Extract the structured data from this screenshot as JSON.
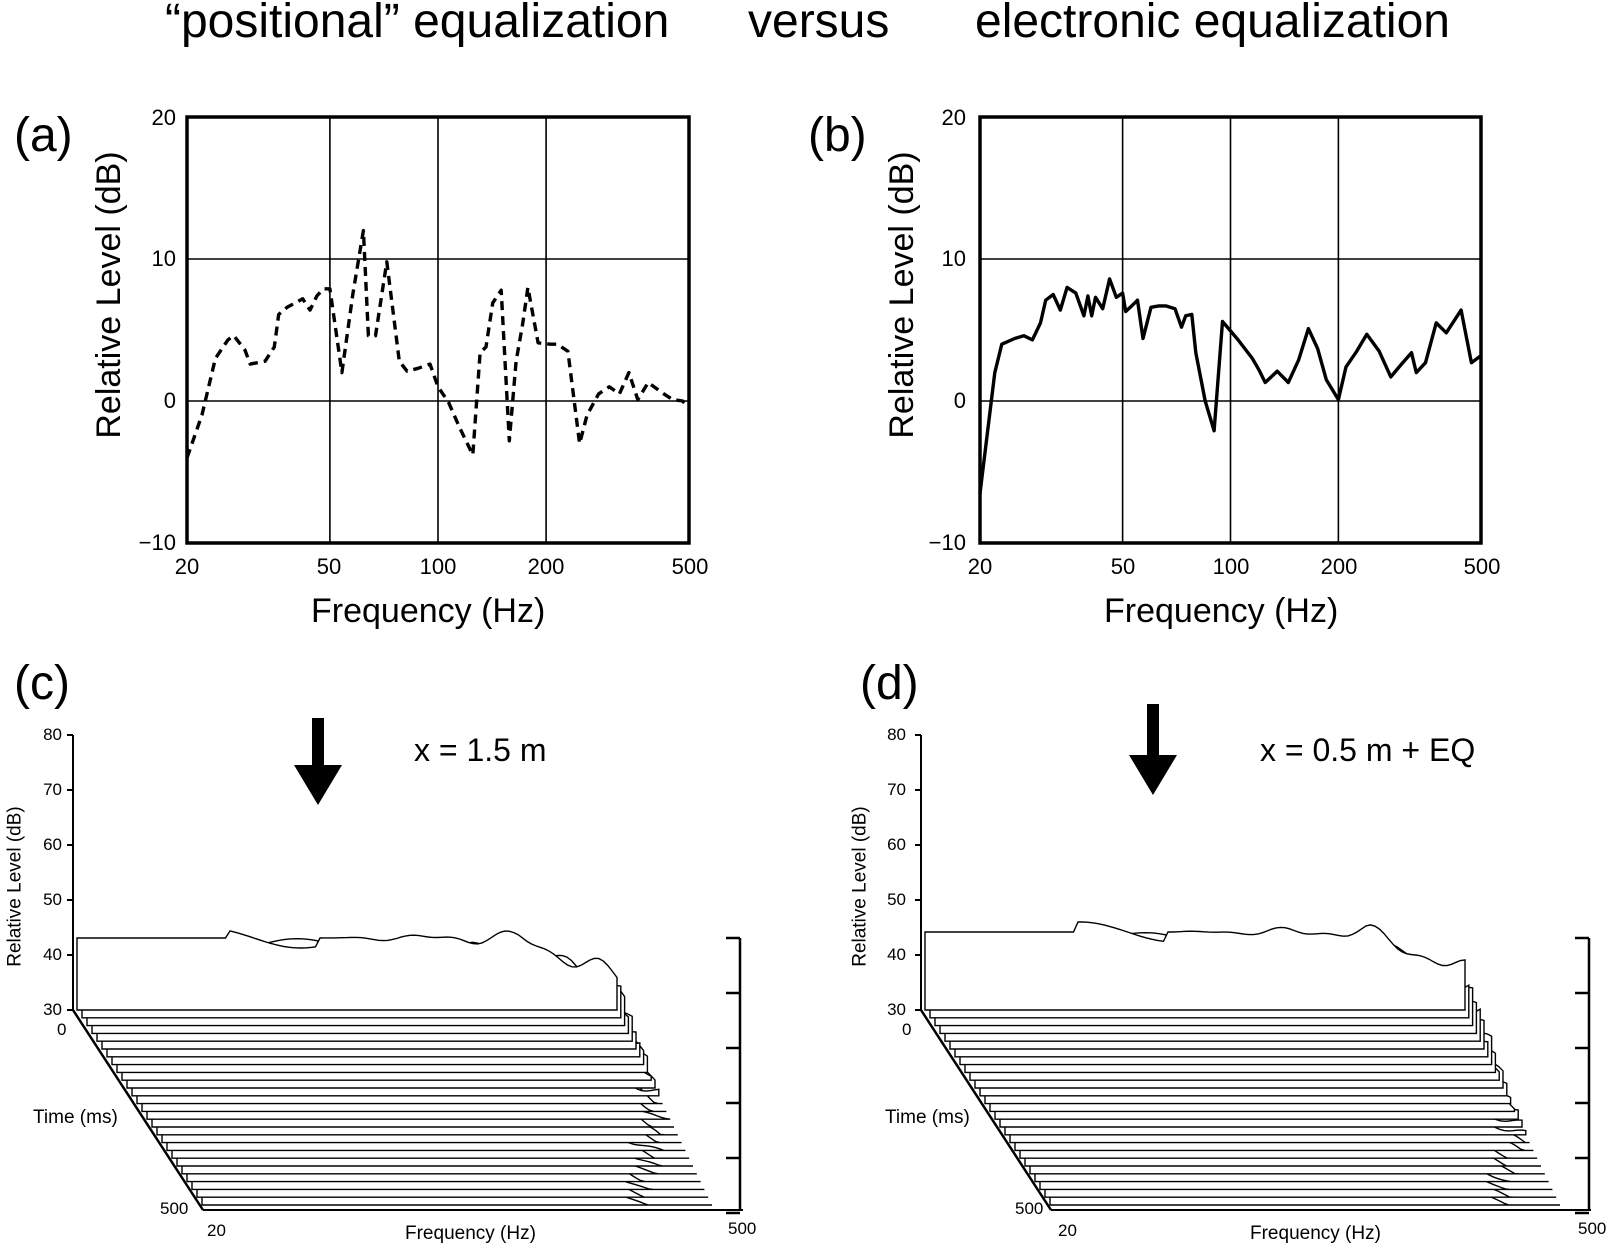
{
  "header": {
    "left": "“positional” equalization",
    "middle": "versus",
    "right": "electronic equalization"
  },
  "chart_data": [
    {
      "id": "a",
      "panel_label": "(a)",
      "type": "line",
      "line_style": "dashed",
      "xscale": "log",
      "xlim": [
        20,
        500
      ],
      "ylim": [
        -10,
        20
      ],
      "x_ticks": [
        "20",
        "50",
        "100",
        "200",
        "500"
      ],
      "y_ticks": [
        "20",
        "10",
        "0",
        "−10"
      ],
      "grid": true,
      "xlabel": "Frequency (Hz)",
      "ylabel": "Relative Level (dB)",
      "series": [
        {
          "x": [
            20,
            22,
            24,
            26,
            27,
            29,
            30,
            33,
            35,
            36,
            38,
            40,
            42,
            44,
            46,
            48,
            50,
            54,
            58,
            62,
            64,
            67,
            72,
            78,
            82,
            88,
            95,
            100,
            107,
            115,
            125,
            131,
            136,
            142,
            150,
            158,
            165,
            172,
            178,
            190,
            205,
            215,
            230,
            248,
            260,
            280,
            300,
            320,
            340,
            360,
            385,
            420,
            450,
            480,
            500
          ],
          "y": [
            -4,
            -1,
            3,
            4.3,
            4.6,
            3.6,
            2.6,
            2.8,
            3.8,
            6.1,
            6.6,
            6.9,
            7.2,
            6.4,
            7.4,
            7.9,
            7.9,
            2,
            7.6,
            12,
            4.6,
            4.6,
            9.8,
            2.8,
            2.1,
            2.3,
            2.6,
            1,
            -0.1,
            -1.9,
            -3.8,
            3.4,
            3.8,
            6.9,
            7.8,
            -2.8,
            2.8,
            5.4,
            8,
            4.1,
            4,
            4,
            3.5,
            -3,
            -1,
            0.5,
            1,
            0.5,
            2,
            0.1,
            1.3,
            0.6,
            0.1,
            0,
            -0.5
          ]
        }
      ]
    },
    {
      "id": "b",
      "panel_label": "(b)",
      "type": "line",
      "line_style": "solid",
      "xscale": "log",
      "xlim": [
        20,
        500
      ],
      "ylim": [
        -10,
        20
      ],
      "x_ticks": [
        "20",
        "50",
        "100",
        "200",
        "500"
      ],
      "y_ticks": [
        "20",
        "10",
        "0",
        "−10"
      ],
      "grid": true,
      "xlabel": "Frequency (Hz)",
      "ylabel": "Relative Level (dB)",
      "series": [
        {
          "x": [
            20,
            22,
            23,
            25,
            26.5,
            28,
            29.5,
            30.5,
            32,
            33.5,
            35,
            37,
            39,
            40,
            41,
            42,
            44,
            46,
            48,
            50,
            51,
            53,
            55,
            57,
            60,
            63,
            66,
            70,
            73,
            75,
            78,
            80,
            85,
            90,
            95,
            105,
            115,
            120,
            125,
            135,
            145,
            155,
            165,
            175,
            185,
            200,
            210,
            225,
            240,
            260,
            280,
            300,
            320,
            330,
            350,
            375,
            400,
            440,
            470,
            500
          ],
          "y": [
            -6.5,
            2,
            4,
            4.4,
            4.6,
            4.3,
            5.5,
            7.1,
            7.5,
            6.4,
            8,
            7.6,
            6,
            7.4,
            6,
            7.3,
            6.5,
            8.6,
            7.3,
            7.6,
            6.3,
            6.7,
            7.1,
            4.4,
            6.6,
            6.7,
            6.7,
            6.5,
            5.2,
            6,
            6.1,
            3.4,
            0,
            -2.1,
            5.6,
            4.3,
            3,
            2.2,
            1.3,
            2.1,
            1.3,
            2.9,
            5.1,
            3.7,
            1.5,
            0.1,
            2.4,
            3.5,
            4.7,
            3.5,
            1.7,
            2.6,
            3.4,
            2,
            2.7,
            5.5,
            4.8,
            6.4,
            2.7,
            3.2
          ]
        }
      ]
    },
    {
      "id": "c",
      "panel_label": "(c)",
      "type": "waterfall",
      "annotation": "x = 1.5 m",
      "xlabel": "Frequency (Hz)",
      "x_ticks": [
        "20",
        "500"
      ],
      "ylabel": "Relative Level (dB)",
      "y_ticks": [
        "80",
        "70",
        "60",
        "50",
        "40",
        "30"
      ],
      "zlabel": "Time (ms)",
      "z_ticks": [
        "0",
        "500"
      ],
      "marker": "arrow"
    },
    {
      "id": "d",
      "panel_label": "(d)",
      "type": "waterfall",
      "annotation": "x = 0.5 m + EQ",
      "xlabel": "Frequency (Hz)",
      "x_ticks": [
        "20",
        "500"
      ],
      "ylabel": "Relative Level (dB)",
      "y_ticks": [
        "80",
        "70",
        "60",
        "50",
        "40",
        "30"
      ],
      "zlabel": "Time (ms)",
      "z_ticks": [
        "0",
        "500"
      ],
      "marker": "arrow"
    }
  ]
}
